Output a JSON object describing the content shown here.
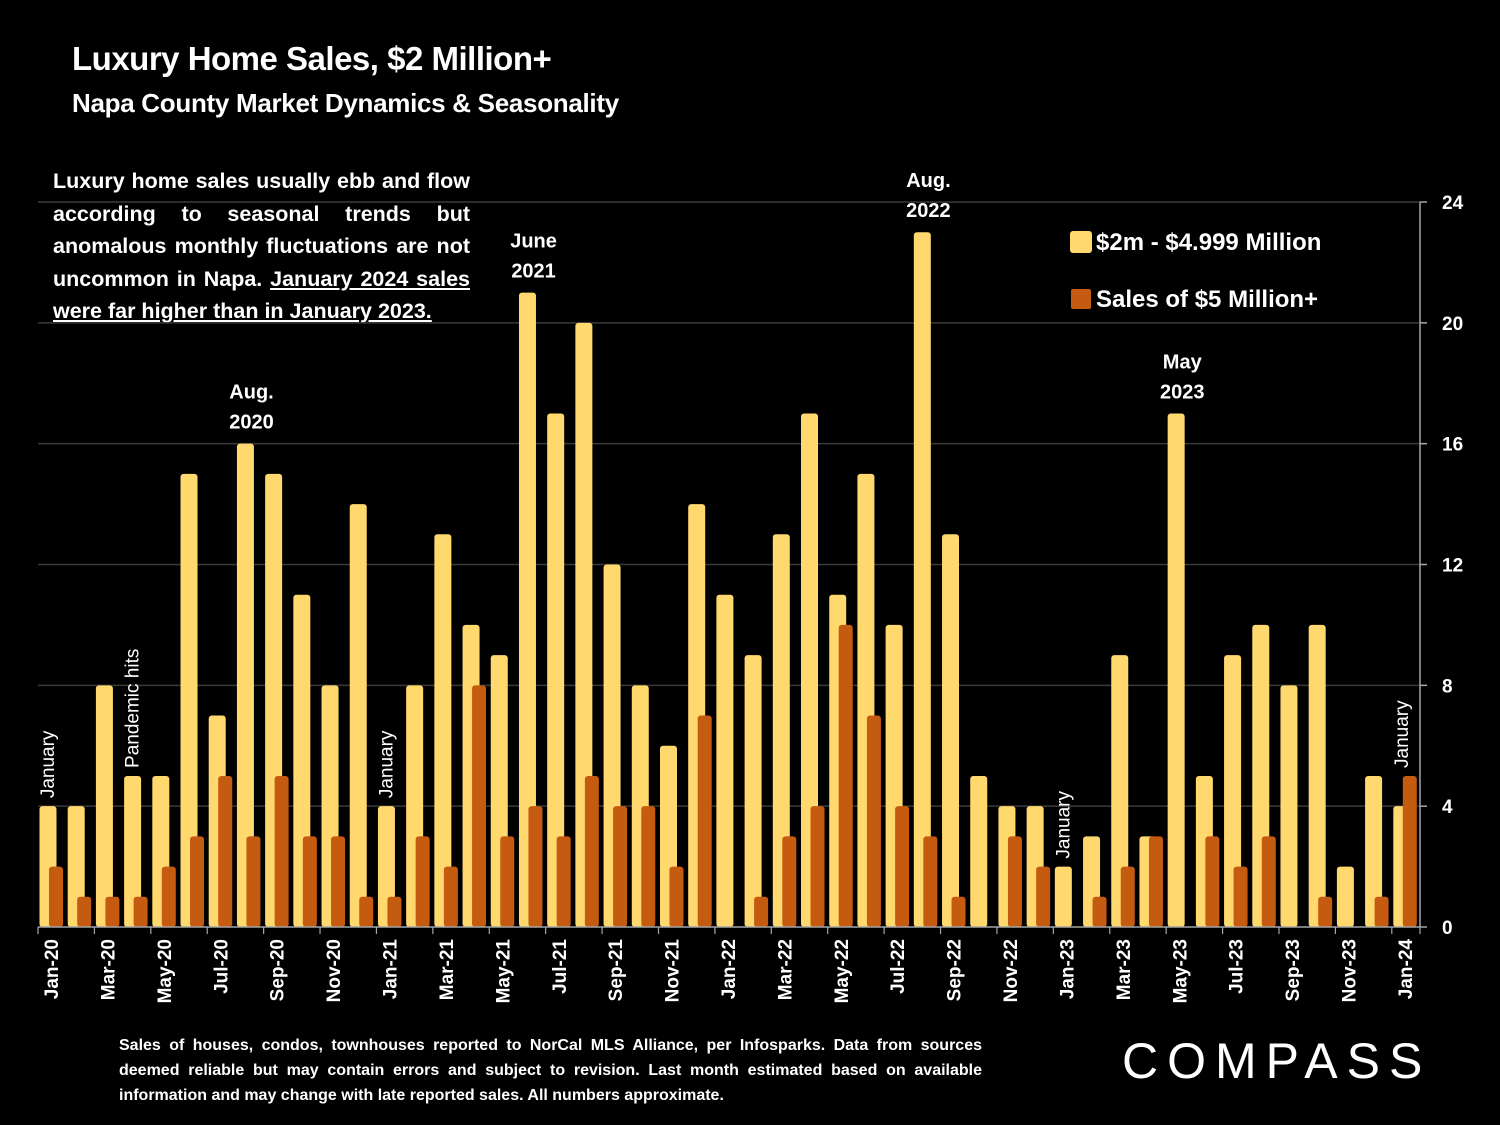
{
  "header": {
    "title": "Luxury Home Sales, $2 Million+",
    "subtitle": "Napa County Market Dynamics & Seasonality"
  },
  "description": {
    "text_plain": "Luxury home sales usually ebb and flow according to seasonal trends but anomalous monthly fluctuations are not uncommon in Napa.",
    "text_underlined": "January 2024 sales were far higher than in January 2023."
  },
  "footnote": "Sales of houses, condos, townhouses reported to NorCal MLS Alliance, per Infosparks. Data from sources deemed reliable but may contain errors and subject to revision. Last month estimated based on available information and may change with late reported sales. All numbers approximate.",
  "brand": {
    "logo_text": "COMPASS"
  },
  "colors": {
    "series1": "#FFD86E",
    "series2": "#C55A11",
    "grid": "#3a3a3a",
    "axis": "#a6a6a6"
  },
  "chart_data": {
    "type": "bar",
    "title": "Luxury Home Sales, $2 Million+",
    "subtitle": "Napa County Market Dynamics & Seasonality",
    "xlabel": "",
    "ylabel": "",
    "ylim": [
      0,
      24
    ],
    "yticks": [
      0,
      4,
      8,
      12,
      16,
      20,
      24
    ],
    "y_axis_side": "right",
    "grid": true,
    "legend_position": "top-right",
    "categories": [
      "Jan-20",
      "Feb-20",
      "Mar-20",
      "Apr-20",
      "May-20",
      "Jun-20",
      "Jul-20",
      "Aug-20",
      "Sep-20",
      "Oct-20",
      "Nov-20",
      "Dec-20",
      "Jan-21",
      "Feb-21",
      "Mar-21",
      "Apr-21",
      "May-21",
      "Jun-21",
      "Jul-21",
      "Aug-21",
      "Sep-21",
      "Oct-21",
      "Nov-21",
      "Dec-21",
      "Jan-22",
      "Feb-22",
      "Mar-22",
      "Apr-22",
      "May-22",
      "Jun-22",
      "Jul-22",
      "Aug-22",
      "Sep-22",
      "Oct-22",
      "Nov-22",
      "Dec-22",
      "Jan-23",
      "Feb-23",
      "Mar-23",
      "Apr-23",
      "May-23",
      "Jun-23",
      "Jul-23",
      "Aug-23",
      "Sep-23",
      "Oct-23",
      "Nov-23",
      "Dec-23",
      "Jan-24"
    ],
    "tick_labels": [
      "Jan-20",
      "Mar-20",
      "May-20",
      "Jul-20",
      "Sep-20",
      "Nov-20",
      "Jan-21",
      "Mar-21",
      "May-21",
      "Jul-21",
      "Sep-21",
      "Nov-21",
      "Jan-22",
      "Mar-22",
      "May-22",
      "Jul-22",
      "Sep-22",
      "Nov-22",
      "Jan-23",
      "Mar-23",
      "May-23",
      "Jul-23",
      "Sep-23",
      "Nov-23",
      "Jan-24"
    ],
    "series": [
      {
        "name": "$2m - $4.999 Million",
        "color": "#FFD86E",
        "values": [
          4,
          4,
          8,
          5,
          5,
          15,
          7,
          16,
          15,
          11,
          8,
          14,
          4,
          8,
          13,
          10,
          9,
          21,
          17,
          20,
          12,
          8,
          6,
          14,
          11,
          9,
          13,
          17,
          11,
          15,
          10,
          23,
          13,
          5,
          4,
          4,
          2,
          3,
          9,
          3,
          17,
          5,
          9,
          10,
          8,
          10,
          2,
          5,
          4
        ]
      },
      {
        "name": "Sales of $5 Million+",
        "color": "#C55A11",
        "values": [
          2,
          1,
          1,
          1,
          2,
          3,
          5,
          3,
          5,
          3,
          3,
          1,
          1,
          3,
          2,
          8,
          3,
          4,
          3,
          5,
          4,
          4,
          2,
          7,
          0,
          1,
          3,
          4,
          10,
          7,
          4,
          3,
          1,
          0,
          3,
          2,
          0,
          1,
          2,
          3,
          0,
          3,
          2,
          3,
          0,
          1,
          0,
          1,
          5
        ]
      }
    ],
    "annotations": [
      {
        "index": 0,
        "text": "January",
        "orientation": "vertical"
      },
      {
        "index": 3,
        "text": "Pandemic hits",
        "orientation": "vertical"
      },
      {
        "index": 7,
        "text": "Aug. 2020",
        "lines": [
          "Aug.",
          "2020"
        ]
      },
      {
        "index": 12,
        "text": "January",
        "orientation": "vertical"
      },
      {
        "index": 17,
        "text": "June 2021",
        "lines": [
          "June",
          "2021"
        ]
      },
      {
        "index": 31,
        "text": "Aug. 2022",
        "lines": [
          "Aug.",
          "2022"
        ]
      },
      {
        "index": 36,
        "text": "January",
        "orientation": "vertical"
      },
      {
        "index": 40,
        "text": "May 2023",
        "lines": [
          "May",
          "2023"
        ]
      },
      {
        "index": 48,
        "text": "January",
        "orientation": "vertical"
      }
    ]
  }
}
